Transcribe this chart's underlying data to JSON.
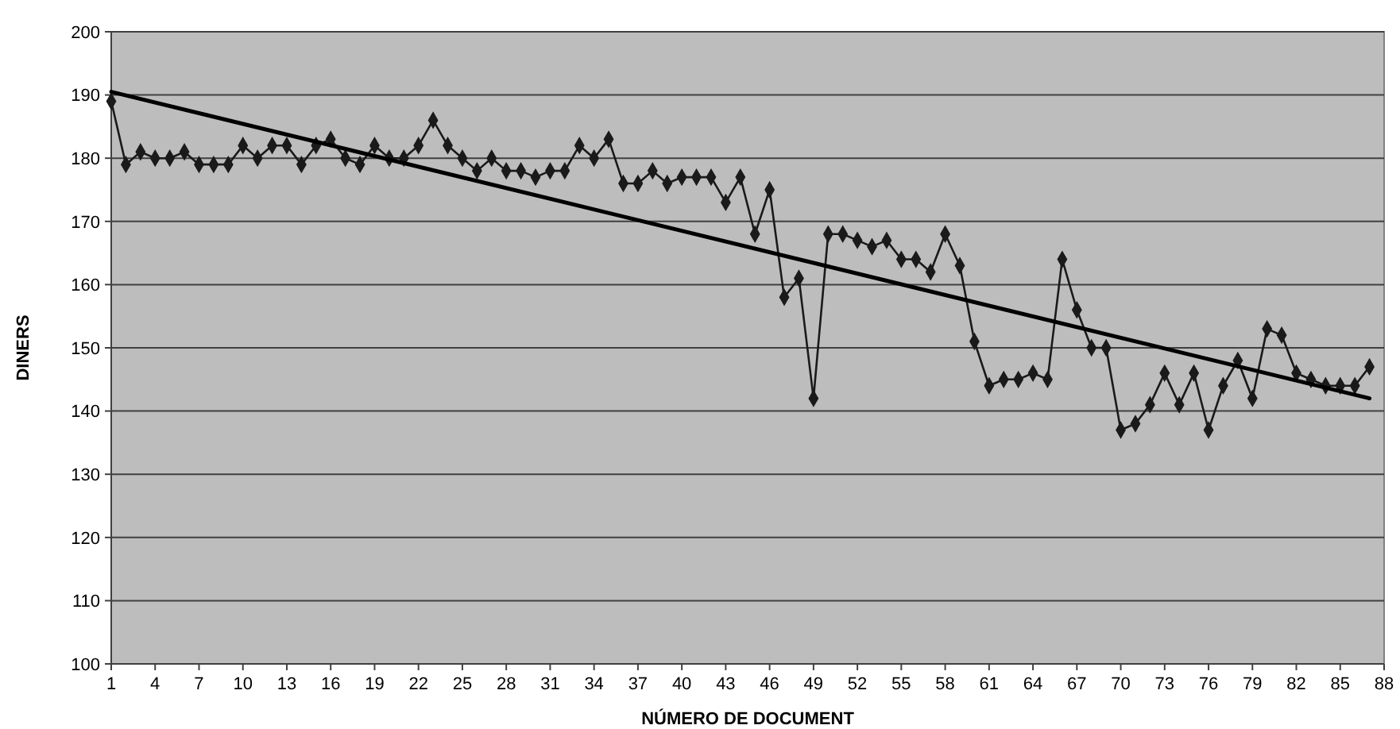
{
  "chart_data": {
    "type": "line",
    "xlabel": "NÚMERO DE DOCUMENT",
    "ylabel": "DINERS",
    "xlim": [
      1,
      88
    ],
    "xticks": [
      1,
      4,
      7,
      10,
      13,
      16,
      19,
      22,
      25,
      28,
      31,
      34,
      37,
      40,
      43,
      46,
      49,
      52,
      55,
      58,
      61,
      64,
      67,
      70,
      73,
      76,
      79,
      82,
      85,
      88
    ],
    "ylim": [
      100,
      200
    ],
    "yticks": [
      100,
      110,
      120,
      130,
      140,
      150,
      160,
      170,
      180,
      190,
      200
    ],
    "grid": "y",
    "series": [
      {
        "color": "#1a1a1a",
        "marker": "diamond",
        "x": [
          1,
          2,
          3,
          4,
          5,
          6,
          7,
          8,
          9,
          10,
          11,
          12,
          13,
          14,
          15,
          16,
          17,
          18,
          19,
          20,
          21,
          22,
          23,
          24,
          25,
          26,
          27,
          28,
          29,
          30,
          31,
          32,
          33,
          34,
          35,
          36,
          37,
          38,
          39,
          40,
          41,
          42,
          43,
          44,
          45,
          46,
          47,
          48,
          49,
          50,
          51,
          52,
          53,
          54,
          55,
          56,
          57,
          58,
          59,
          60,
          61,
          62,
          63,
          64,
          65,
          66,
          67,
          68,
          69,
          70,
          71,
          72,
          73,
          74,
          75,
          76,
          77,
          78,
          79,
          80,
          81,
          82,
          83,
          84,
          85,
          86,
          87
        ],
        "values": [
          189,
          179,
          181,
          180,
          180,
          181,
          179,
          179,
          179,
          182,
          180,
          182,
          182,
          179,
          182,
          183,
          180,
          179,
          182,
          180,
          180,
          182,
          186,
          182,
          180,
          178,
          180,
          178,
          178,
          177,
          178,
          178,
          182,
          180,
          183,
          176,
          176,
          178,
          176,
          177,
          177,
          177,
          173,
          177,
          168,
          175,
          158,
          161,
          142,
          168,
          168,
          167,
          166,
          167,
          164,
          164,
          162,
          168,
          163,
          151,
          144,
          145,
          145,
          146,
          145,
          164,
          156,
          150,
          150,
          137,
          138,
          141,
          146,
          141,
          146,
          137,
          144,
          148,
          142,
          153,
          152,
          146,
          145,
          144,
          144,
          144,
          147
        ]
      },
      {
        "color": "#000000",
        "marker": "none",
        "x": [
          1,
          87
        ],
        "values": [
          190.5,
          142
        ]
      }
    ]
  }
}
